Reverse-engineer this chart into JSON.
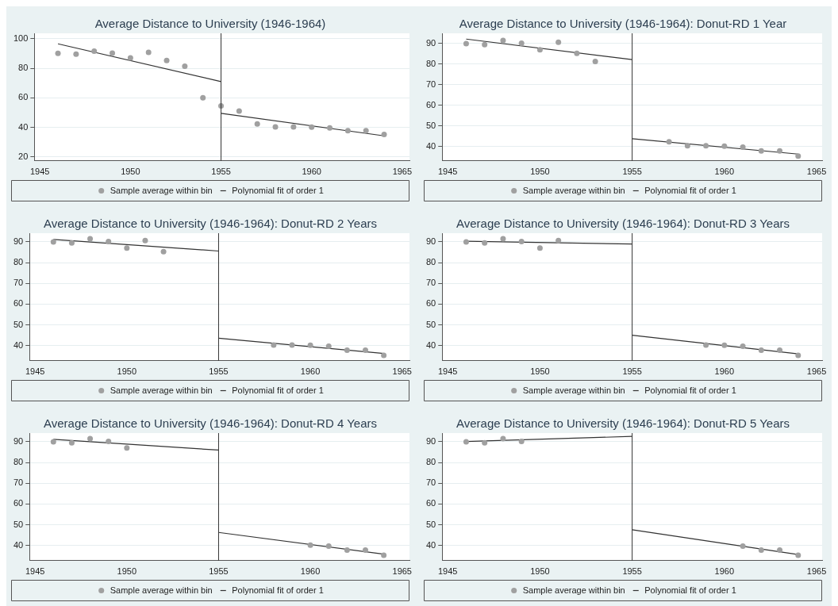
{
  "chart_data": [
    {
      "type": "scatter",
      "title": "Average Distance to University (1946-1964)",
      "xlim": [
        1944.7,
        1965.4
      ],
      "xticks": [
        1945,
        1950,
        1955,
        1960,
        1965
      ],
      "ylim": [
        17.4,
        103.6
      ],
      "yticks": [
        20,
        40,
        60,
        80,
        100
      ],
      "grid": "y",
      "legend": "bottom",
      "ref_lines": [
        {
          "axis": "x",
          "value": 1955,
          "color": "#333333"
        }
      ],
      "series": [
        {
          "name": "Sample average within bin",
          "type": "scatter",
          "marker": "circle",
          "color": "#a0a0a0",
          "x": [
            1946,
            1947,
            1948,
            1949,
            1950,
            1951,
            1952,
            1953,
            1954,
            1955,
            1956,
            1957,
            1958,
            1959,
            1960,
            1961,
            1962,
            1963,
            1964
          ],
          "values": [
            90,
            89.5,
            91.5,
            90.2,
            87,
            90.7,
            85.3,
            81.3,
            60,
            54.5,
            51,
            42.3,
            40.3,
            40.3,
            40.2,
            39.7,
            37.8,
            37.8,
            35.3
          ]
        },
        {
          "name": "Polynomial fit of order 1",
          "type": "line",
          "color": "#333333",
          "x": [
            1946,
            1955
          ],
          "values": [
            96.5,
            71
          ]
        },
        {
          "type": "line",
          "color": "#333333",
          "x": [
            1955,
            1964
          ],
          "values": [
            49.5,
            34.3
          ]
        }
      ]
    },
    {
      "type": "scatter",
      "title": "Average Distance to University (1946-1964): Donut-RD 1 Year",
      "xlim": [
        1944.7,
        1965.3
      ],
      "xticks": [
        1945,
        1950,
        1955,
        1960,
        1965
      ],
      "ylim": [
        33,
        95
      ],
      "yticks": [
        40,
        50,
        60,
        70,
        80,
        90
      ],
      "grid": "y",
      "legend": "bottom",
      "ref_lines": [
        {
          "axis": "x",
          "value": 1955,
          "color": "#333333"
        }
      ],
      "series": [
        {
          "name": "Sample average within bin",
          "type": "scatter",
          "marker": "circle",
          "color": "#a0a0a0",
          "x": [
            1946,
            1947,
            1948,
            1949,
            1950,
            1951,
            1952,
            1953,
            1957,
            1958,
            1959,
            1960,
            1961,
            1962,
            1963,
            1964
          ],
          "values": [
            90,
            89.5,
            91.5,
            90.2,
            87,
            90.7,
            85.3,
            81.3,
            42.3,
            40.3,
            40.3,
            40.2,
            39.7,
            37.8,
            37.8,
            35.3
          ]
        },
        {
          "name": "Polynomial fit of order 1",
          "type": "line",
          "color": "#333333",
          "x": [
            1946,
            1955
          ],
          "values": [
            92.2,
            82.2
          ]
        },
        {
          "type": "line",
          "color": "#333333",
          "x": [
            1955,
            1964
          ],
          "values": [
            43.8,
            36.3
          ]
        }
      ]
    },
    {
      "type": "scatter",
      "title": "Average Distance to University (1946-1964): Donut-RD 2 Years",
      "xlim": [
        1944.7,
        1965.4
      ],
      "xticks": [
        1945,
        1950,
        1955,
        1960,
        1965
      ],
      "ylim": [
        32.7,
        94.2
      ],
      "yticks": [
        40,
        50,
        60,
        70,
        80,
        90
      ],
      "grid": "y",
      "legend": "bottom",
      "ref_lines": [
        {
          "axis": "x",
          "value": 1955,
          "color": "#333333"
        }
      ],
      "series": [
        {
          "name": "Sample average within bin",
          "type": "scatter",
          "marker": "circle",
          "color": "#a0a0a0",
          "x": [
            1946,
            1947,
            1948,
            1949,
            1950,
            1951,
            1952,
            1958,
            1959,
            1960,
            1961,
            1962,
            1963,
            1964
          ],
          "values": [
            90,
            89.5,
            91.5,
            90.2,
            87,
            90.7,
            85.3,
            40.3,
            40.3,
            40.2,
            39.7,
            37.8,
            37.8,
            35.3
          ]
        },
        {
          "name": "Polynomial fit of order 1",
          "type": "line",
          "color": "#333333",
          "x": [
            1946,
            1955
          ],
          "values": [
            91.2,
            85.6
          ]
        },
        {
          "type": "line",
          "color": "#333333",
          "x": [
            1955,
            1964
          ],
          "values": [
            43.6,
            36.2
          ]
        }
      ]
    },
    {
      "type": "scatter",
      "title": "Average Distance to University (1946-1964): Donut-RD 3 Years",
      "xlim": [
        1944.7,
        1965.3
      ],
      "xticks": [
        1945,
        1950,
        1955,
        1960,
        1965
      ],
      "ylim": [
        32.7,
        94.2
      ],
      "yticks": [
        40,
        50,
        60,
        70,
        80,
        90
      ],
      "grid": "y",
      "legend": "bottom",
      "ref_lines": [
        {
          "axis": "x",
          "value": 1955,
          "color": "#333333"
        }
      ],
      "series": [
        {
          "name": "Sample average within bin",
          "type": "scatter",
          "marker": "circle",
          "color": "#a0a0a0",
          "x": [
            1946,
            1947,
            1948,
            1949,
            1950,
            1951,
            1959,
            1960,
            1961,
            1962,
            1963,
            1964
          ],
          "values": [
            90,
            89.5,
            91.5,
            90.2,
            87,
            90.7,
            40.3,
            40.2,
            39.7,
            37.8,
            37.8,
            35.3
          ]
        },
        {
          "name": "Polynomial fit of order 1",
          "type": "line",
          "color": "#333333",
          "x": [
            1946,
            1955
          ],
          "values": [
            90.3,
            89
          ]
        },
        {
          "type": "line",
          "color": "#333333",
          "x": [
            1955,
            1964
          ],
          "values": [
            45,
            36
          ]
        }
      ]
    },
    {
      "type": "scatter",
      "title": "Average Distance to University (1946-1964): Donut-RD 4 Years",
      "xlim": [
        1944.7,
        1965.4
      ],
      "xticks": [
        1945,
        1950,
        1955,
        1960,
        1965
      ],
      "ylim": [
        32.7,
        94.2
      ],
      "yticks": [
        40,
        50,
        60,
        70,
        80,
        90
      ],
      "grid": "y",
      "legend": "bottom",
      "ref_lines": [
        {
          "axis": "x",
          "value": 1955,
          "color": "#333333"
        }
      ],
      "series": [
        {
          "name": "Sample average within bin",
          "type": "scatter",
          "marker": "circle",
          "color": "#a0a0a0",
          "x": [
            1946,
            1947,
            1948,
            1949,
            1950,
            1960,
            1961,
            1962,
            1963,
            1964
          ],
          "values": [
            90,
            89.5,
            91.5,
            90.2,
            87,
            40.2,
            39.7,
            37.8,
            37.8,
            35.3
          ]
        },
        {
          "name": "Polynomial fit of order 1",
          "type": "line",
          "color": "#333333",
          "x": [
            1946,
            1955
          ],
          "values": [
            91.2,
            86
          ]
        },
        {
          "type": "line",
          "color": "#333333",
          "x": [
            1955,
            1964
          ],
          "values": [
            46.3,
            35.8
          ]
        }
      ]
    },
    {
      "type": "scatter",
      "title": "Average Distance to University (1946-1964): Donut-RD 5 Years",
      "xlim": [
        1944.7,
        1965.3
      ],
      "xticks": [
        1945,
        1950,
        1955,
        1960,
        1965
      ],
      "ylim": [
        32.7,
        94.2
      ],
      "yticks": [
        40,
        50,
        60,
        70,
        80,
        90
      ],
      "grid": "y",
      "legend": "bottom",
      "ref_lines": [
        {
          "axis": "x",
          "value": 1955,
          "color": "#333333"
        }
      ],
      "series": [
        {
          "name": "Sample average within bin",
          "type": "scatter",
          "marker": "circle",
          "color": "#a0a0a0",
          "x": [
            1946,
            1947,
            1948,
            1949,
            1961,
            1962,
            1963,
            1964
          ],
          "values": [
            90,
            89.5,
            91.5,
            90.2,
            39.7,
            37.8,
            37.8,
            35.3
          ]
        },
        {
          "name": "Polynomial fit of order 1",
          "type": "line",
          "color": "#333333",
          "x": [
            1946,
            1955
          ],
          "values": [
            90.1,
            92.6
          ]
        },
        {
          "type": "line",
          "color": "#333333",
          "x": [
            1955,
            1964
          ],
          "values": [
            47.6,
            35.6
          ]
        }
      ]
    }
  ]
}
